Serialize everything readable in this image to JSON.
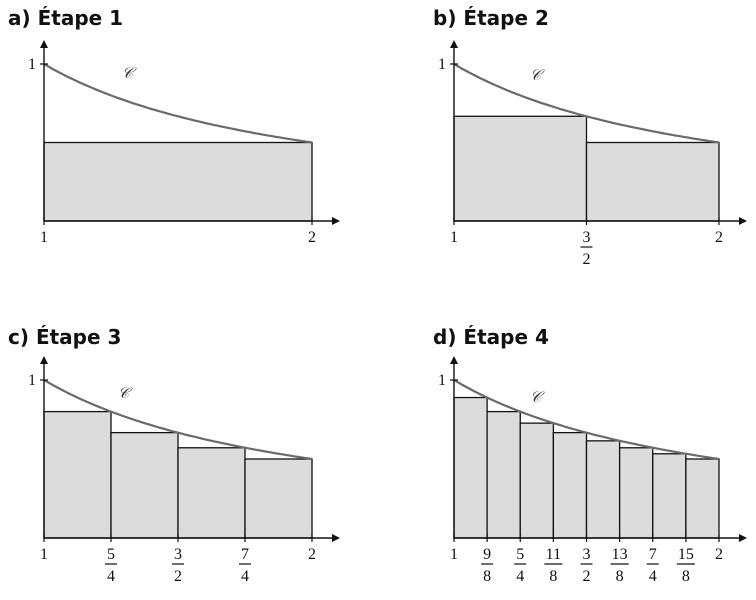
{
  "panels": [
    {
      "title": "a) Étape 1",
      "curve_label": "𝒞",
      "y_label": "1",
      "ticks": [
        {
          "x": 1,
          "num": "1"
        },
        {
          "x": 2,
          "num": "2"
        }
      ],
      "rects": [
        [
          1,
          2,
          0.5
        ]
      ]
    },
    {
      "title": "b) Étape 2",
      "curve_label": "𝒞",
      "y_label": "1",
      "ticks": [
        {
          "x": 1,
          "num": "1"
        },
        {
          "x": 1.5,
          "num": "3",
          "den": "2"
        },
        {
          "x": 2,
          "num": "2"
        }
      ],
      "rects": [
        [
          1,
          1.5,
          0.667
        ],
        [
          1.5,
          2,
          0.5
        ]
      ]
    },
    {
      "title": "c) Étape 3",
      "curve_label": "𝒞",
      "y_label": "1",
      "ticks": [
        {
          "x": 1,
          "num": "1"
        },
        {
          "x": 1.25,
          "num": "5",
          "den": "4"
        },
        {
          "x": 1.5,
          "num": "3",
          "den": "2"
        },
        {
          "x": 1.75,
          "num": "7",
          "den": "4"
        },
        {
          "x": 2,
          "num": "2"
        }
      ],
      "rects": [
        [
          1,
          1.25,
          0.8
        ],
        [
          1.25,
          1.5,
          0.667
        ],
        [
          1.5,
          1.75,
          0.571
        ],
        [
          1.75,
          2,
          0.5
        ]
      ]
    },
    {
      "title": "d) Étape 4",
      "curve_label": "𝒞",
      "y_label": "1",
      "ticks": [
        {
          "x": 1,
          "num": "1"
        },
        {
          "x": 1.125,
          "num": "9",
          "den": "8"
        },
        {
          "x": 1.25,
          "num": "5",
          "den": "4"
        },
        {
          "x": 1.375,
          "num": "11",
          "den": "8"
        },
        {
          "x": 1.5,
          "num": "3",
          "den": "2"
        },
        {
          "x": 1.625,
          "num": "13",
          "den": "8"
        },
        {
          "x": 1.75,
          "num": "7",
          "den": "4"
        },
        {
          "x": 1.875,
          "num": "15",
          "den": "8"
        },
        {
          "x": 2,
          "num": "2"
        }
      ],
      "rects": [
        [
          1,
          1.125,
          0.889
        ],
        [
          1.125,
          1.25,
          0.8
        ],
        [
          1.25,
          1.375,
          0.727
        ],
        [
          1.375,
          1.5,
          0.667
        ],
        [
          1.5,
          1.625,
          0.615
        ],
        [
          1.625,
          1.75,
          0.571
        ],
        [
          1.75,
          1.875,
          0.533
        ],
        [
          1.875,
          2,
          0.5
        ]
      ]
    }
  ],
  "colors": {
    "fill": "#dcdcdc",
    "stroke": "#111111",
    "curve": "#6a6a6a"
  }
}
